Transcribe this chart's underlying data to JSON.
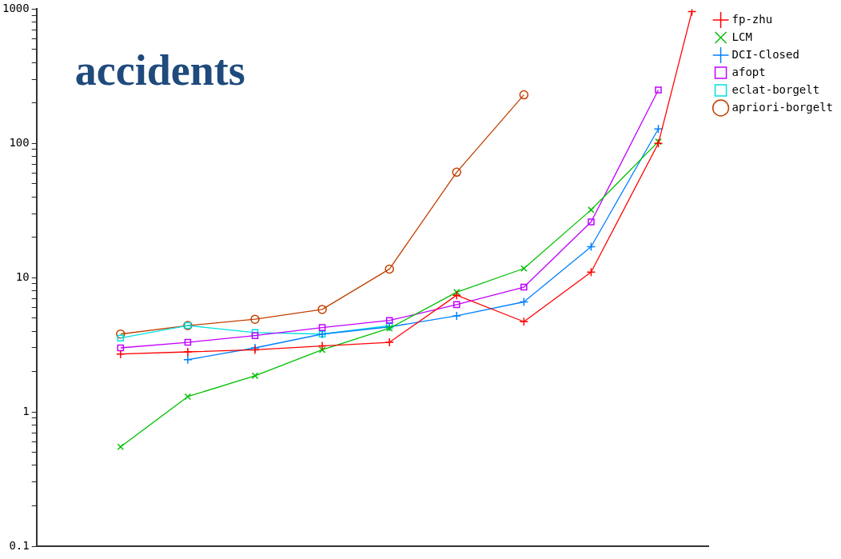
{
  "chart_data": {
    "type": "line",
    "title": "accidents",
    "log": "y",
    "grid": false,
    "legend": "top right",
    "tick_labels": "y",
    "categories": [
      null,
      null,
      null,
      null,
      null,
      null,
      null,
      null,
      null,
      null,
      null,
      null,
      null,
      null,
      null,
      null,
      null,
      null,
      null,
      null
    ],
    "ylim": [
      0.1,
      1000
    ],
    "yticks": [
      0.1,
      {
        "value": 0.2,
        "label": null
      },
      {
        "value": 0.3,
        "label": null
      },
      {
        "value": 0.4,
        "label": null
      },
      {
        "value": 0.5,
        "label": null
      },
      {
        "value": 0.6,
        "label": null
      },
      {
        "value": 0.7,
        "label": null
      },
      {
        "value": 0.8,
        "label": null
      },
      {
        "value": 0.9,
        "label": null
      },
      1,
      {
        "value": 2,
        "label": null
      },
      {
        "value": 3,
        "label": null
      },
      {
        "value": 4,
        "label": null
      },
      {
        "value": 5,
        "label": null
      },
      {
        "value": 6,
        "label": null
      },
      {
        "value": 7,
        "label": null
      },
      {
        "value": 8,
        "label": null
      },
      {
        "value": 9,
        "label": null
      },
      10,
      {
        "value": 20,
        "label": null
      },
      {
        "value": 30,
        "label": null
      },
      {
        "value": 40,
        "label": null
      },
      {
        "value": 50,
        "label": null
      },
      {
        "value": 60,
        "label": null
      },
      {
        "value": 70,
        "label": null
      },
      {
        "value": 80,
        "label": null
      },
      {
        "value": 90,
        "label": null
      },
      100,
      {
        "value": 200,
        "label": null
      },
      {
        "value": 300,
        "label": null
      },
      {
        "value": 400,
        "label": null
      },
      {
        "value": 500,
        "label": null
      },
      {
        "value": 600,
        "label": null
      },
      {
        "value": 700,
        "label": null
      },
      {
        "value": 800,
        "label": null
      },
      {
        "value": 900,
        "label": null
      },
      1000
    ],
    "series": [
      {
        "name": "fp-zhu",
        "color": "#ff0000",
        "marker": "cross",
        "values": [
          null,
          null,
          2.7,
          null,
          2.8,
          null,
          2.9,
          null,
          3.1,
          null,
          3.3,
          null,
          7.4,
          null,
          4.7,
          null,
          11,
          null,
          100,
          960
        ]
      },
      {
        "name": "LCM",
        "color": "#00c000",
        "marker": "x",
        "values": [
          null,
          null,
          0.55,
          null,
          1.3,
          null,
          1.86,
          null,
          2.9,
          null,
          4.2,
          null,
          7.8,
          null,
          11.7,
          null,
          32,
          null,
          103,
          null
        ]
      },
      {
        "name": "DCI-Closed",
        "color": "#0080ff",
        "marker": "cross",
        "values": [
          null,
          null,
          null,
          null,
          2.45,
          null,
          3.0,
          null,
          3.8,
          null,
          4.3,
          null,
          5.2,
          null,
          6.6,
          null,
          17,
          null,
          128,
          null
        ]
      },
      {
        "name": "afopt",
        "color": "#c000ff",
        "marker": "square",
        "values": [
          null,
          null,
          3.0,
          null,
          3.3,
          null,
          3.7,
          null,
          4.25,
          null,
          4.8,
          null,
          6.3,
          null,
          8.5,
          null,
          26,
          null,
          250,
          null
        ]
      },
      {
        "name": "eclat-borgelt",
        "color": "#00e0e0",
        "marker": "square",
        "values": [
          null,
          null,
          3.55,
          null,
          4.4,
          null,
          3.9,
          null,
          3.8,
          null,
          4.4,
          null,
          null,
          null,
          null,
          null,
          null,
          null,
          null,
          null
        ]
      },
      {
        "name": "apriori-borgelt",
        "color": "#c04000",
        "marker": "circle",
        "values": [
          null,
          null,
          3.8,
          null,
          4.4,
          null,
          4.9,
          null,
          5.8,
          null,
          11.6,
          null,
          61,
          null,
          230,
          null,
          null,
          null,
          null,
          null
        ]
      }
    ]
  }
}
